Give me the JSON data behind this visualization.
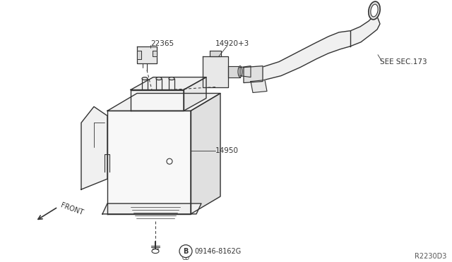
{
  "bg_color": "#ffffff",
  "line_color": "#333333",
  "label_color": "#333333",
  "diagram_id": "R2230D3",
  "label_22365": "22365",
  "label_14920": "14920+3",
  "label_14950": "14950",
  "label_bolt": "09146-8162G",
  "label_see": "SEE SEC.173",
  "label_front": "FRONT"
}
